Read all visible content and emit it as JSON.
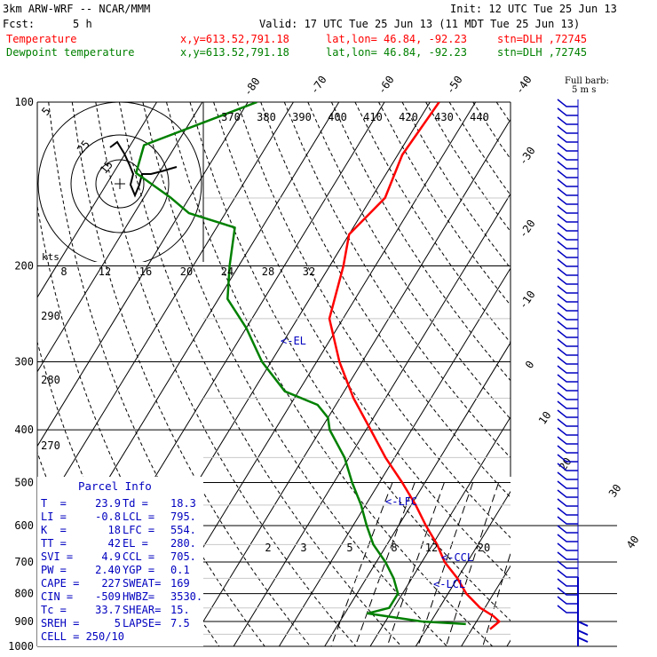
{
  "header": {
    "model": "3km ARW-WRF -- NCAR/MMM",
    "init": "Init: 12 UTC Tue 25 Jun 13",
    "fcst_label": "Fcst:",
    "fcst_value": "5 h",
    "valid": "Valid: 17 UTC Tue 25 Jun 13 (11 MDT Tue 25 Jun 13)",
    "temperature_label": "Temperature",
    "dewpoint_label": "Dewpoint temperature",
    "xy": "x,y=613.52,791.18",
    "latlon": "lat,lon= 46.84, -92.23",
    "stn": "stn=DLH ,72745",
    "colors": {
      "temperature": "#ff0000",
      "dewpoint": "#008000",
      "text_blue": "#0000c0",
      "barb": "#0000c0"
    }
  },
  "barb_key": {
    "line1": "Full barb:",
    "line2": "5 m s"
  },
  "hodograph": {
    "units": "kts",
    "ring_labels": [
      "5",
      "25",
      "15"
    ]
  },
  "parcel_info": {
    "title": "Parcel Info",
    "rows": [
      {
        "l": "T  =",
        "lv": "23.9",
        "r": "Td =",
        "rv": "18.3"
      },
      {
        "l": "LI =",
        "lv": "-0.8",
        "r": "LCL =",
        "rv": "795."
      },
      {
        "l": "K  =",
        "lv": "18",
        "r": "LFC =",
        "rv": "554."
      },
      {
        "l": "TT =",
        "lv": "42",
        "r": "EL =",
        "rv": "280."
      },
      {
        "l": "SVI =",
        "lv": "4.9",
        "r": "CCL =",
        "rv": "705."
      },
      {
        "l": "PW =",
        "lv": "2.40",
        "r": "YGP =",
        "rv": "0.1"
      },
      {
        "l": "CAPE =",
        "lv": "227",
        "r": "SWEAT=",
        "rv": "169"
      },
      {
        "l": "CIN =",
        "lv": "-509",
        "r": "HWBZ=",
        "rv": "3530."
      },
      {
        "l": "Tc =",
        "lv": "33.7",
        "r": "SHEAR=",
        "rv": "15."
      },
      {
        "l": "SREH =",
        "lv": "5",
        "r": "LAPSE=",
        "rv": "7.5"
      },
      {
        "l": "CELL = 250/10",
        "lv": "",
        "r": "",
        "rv": ""
      }
    ]
  },
  "chart_data": {
    "type": "skew-t",
    "pressure_levels": [
      100,
      200,
      300,
      400,
      500,
      600,
      700,
      800,
      900,
      1000
    ],
    "isotherms_upper": [
      "-80",
      "-70",
      "-60",
      "-50",
      "-40"
    ],
    "isotherms_right": [
      "-30",
      "-20",
      "-10",
      "0",
      "10",
      "20",
      "30",
      "40"
    ],
    "theta_labels": [
      "370",
      "380",
      "390",
      "400",
      "410",
      "420",
      "430",
      "440"
    ],
    "theta_left": [
      "290",
      "280",
      "270"
    ],
    "hodo_speed_labels": [
      "8",
      "12",
      "16",
      "20",
      "24",
      "28",
      "32"
    ],
    "mixing_ratio_labels": [
      "2",
      "3",
      "5",
      "8",
      "12",
      "20"
    ],
    "level_markers": [
      "<-EL",
      "<-LFC",
      "<-CCL",
      "<-LCL"
    ],
    "series": [
      {
        "name": "Temperature",
        "color": "#ff0000",
        "points": [
          [
            100,
            -58
          ],
          [
            125,
            -59
          ],
          [
            150,
            -57
          ],
          [
            175,
            -60
          ],
          [
            200,
            -57
          ],
          [
            250,
            -53
          ],
          [
            300,
            -45
          ],
          [
            350,
            -37
          ],
          [
            400,
            -29
          ],
          [
            450,
            -22
          ],
          [
            500,
            -15
          ],
          [
            550,
            -9
          ],
          [
            600,
            -4
          ],
          [
            650,
            1
          ],
          [
            700,
            5
          ],
          [
            750,
            10
          ],
          [
            800,
            14
          ],
          [
            850,
            19
          ],
          [
            880,
            23
          ],
          [
            900,
            25
          ],
          [
            930,
            24
          ]
        ]
      },
      {
        "name": "Dewpoint temperature",
        "color": "#008000",
        "points": [
          [
            100,
            -98
          ],
          [
            120,
            -117
          ],
          [
            135,
            -115
          ],
          [
            150,
            -104
          ],
          [
            160,
            -98
          ],
          [
            170,
            -86
          ],
          [
            200,
            -82
          ],
          [
            230,
            -78
          ],
          [
            260,
            -70
          ],
          [
            300,
            -62
          ],
          [
            340,
            -53
          ],
          [
            360,
            -44
          ],
          [
            380,
            -40
          ],
          [
            400,
            -38
          ],
          [
            450,
            -31
          ],
          [
            500,
            -26
          ],
          [
            550,
            -21
          ],
          [
            600,
            -17
          ],
          [
            650,
            -13
          ],
          [
            700,
            -8
          ],
          [
            750,
            -4
          ],
          [
            800,
            -1
          ],
          [
            850,
            -1
          ],
          [
            870,
            -5
          ],
          [
            900,
            8
          ],
          [
            910,
            18
          ]
        ]
      }
    ]
  }
}
